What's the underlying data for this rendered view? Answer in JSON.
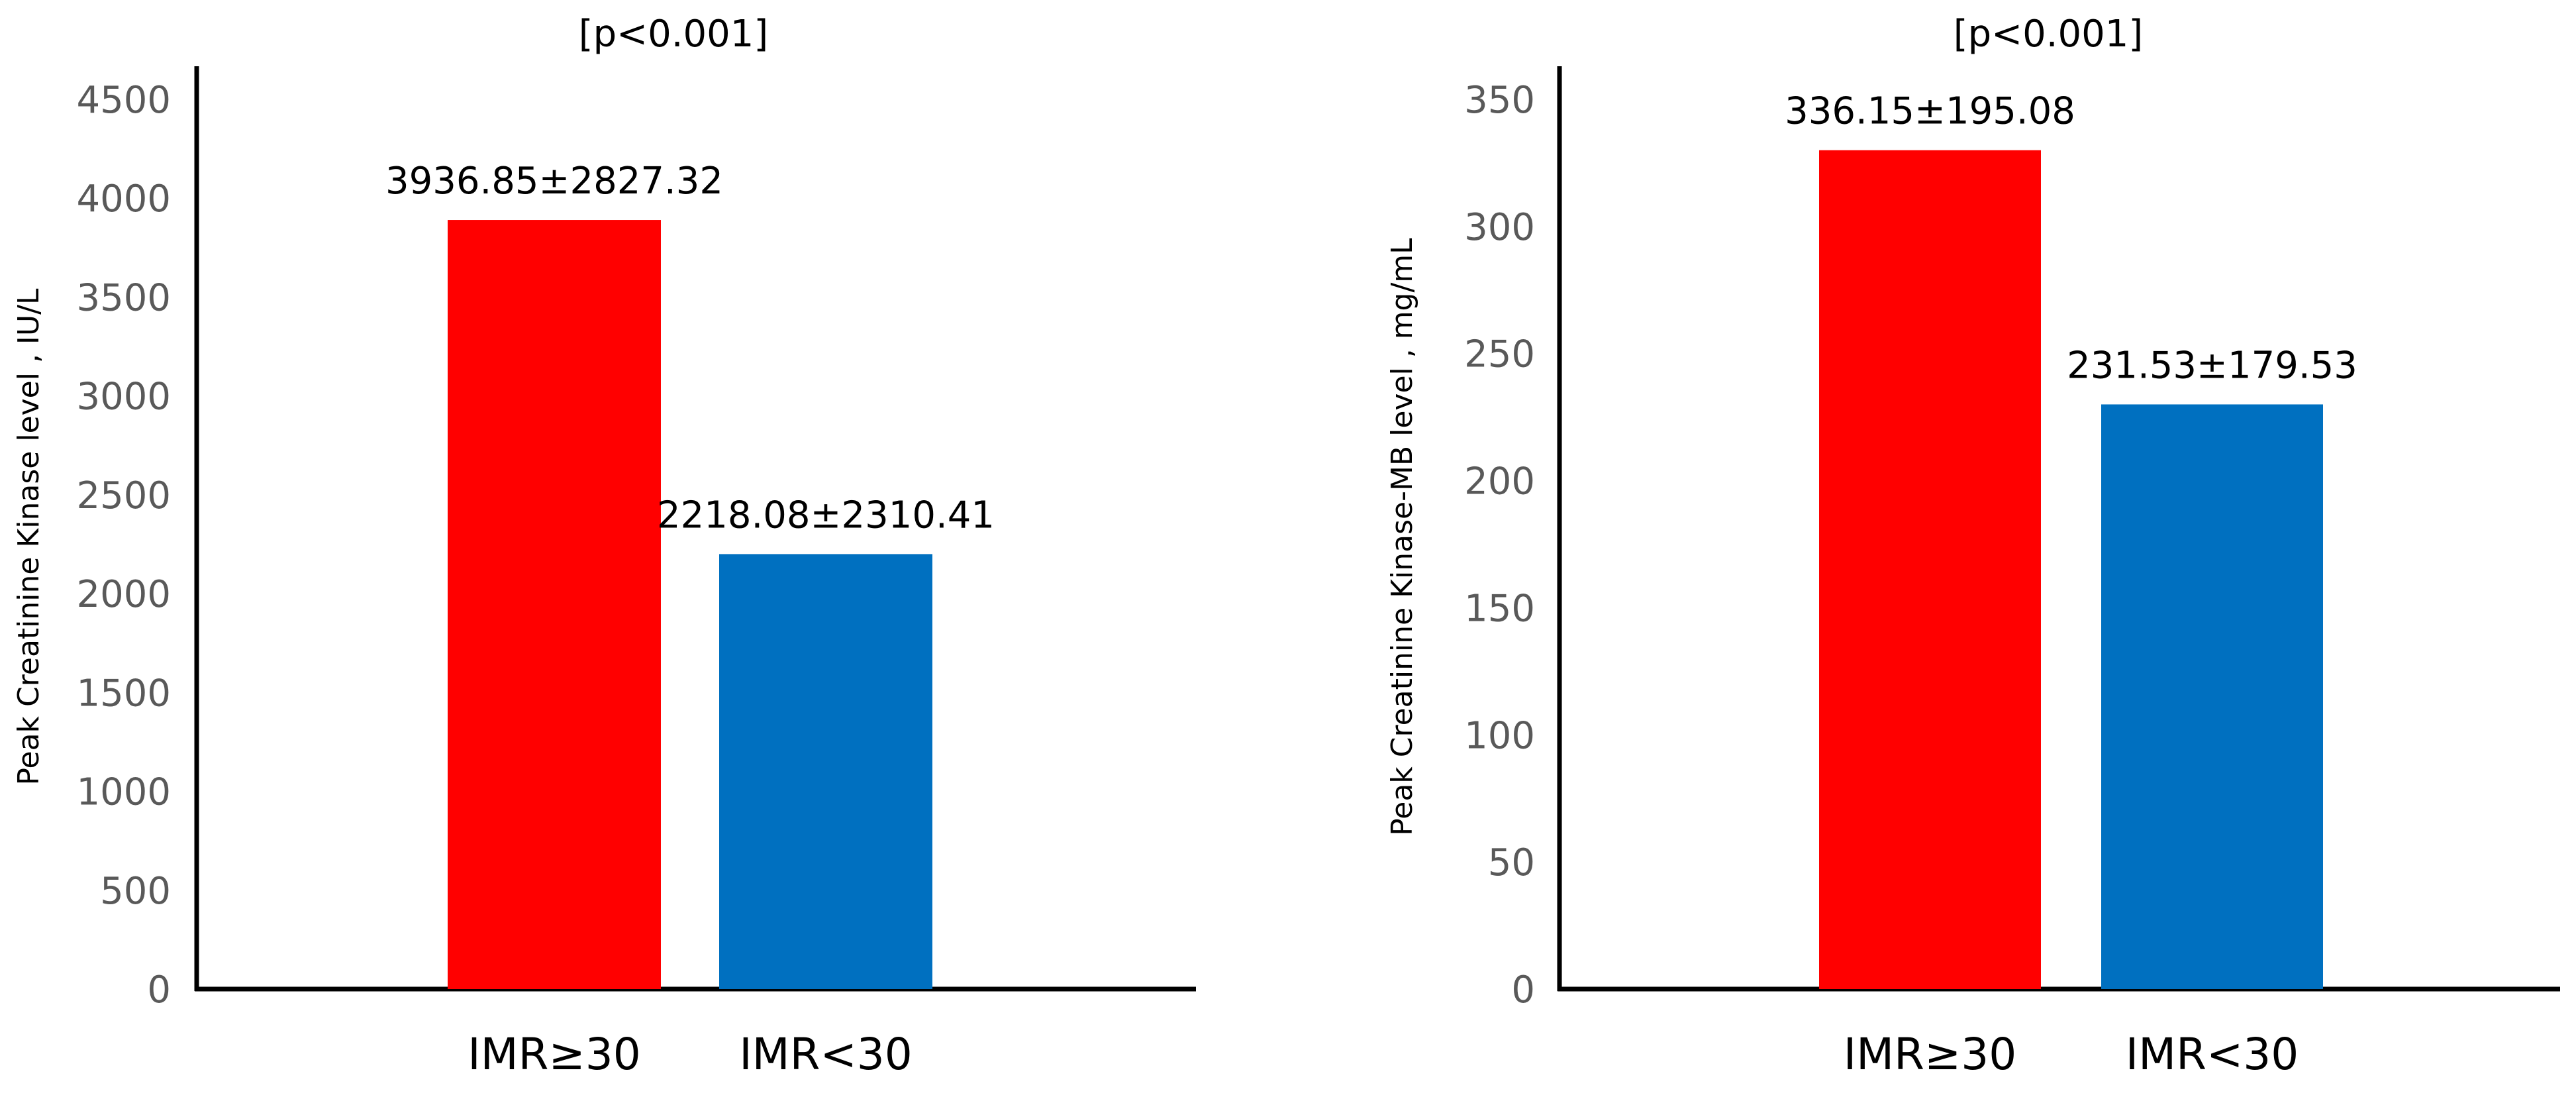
{
  "chart_data": [
    {
      "type": "bar",
      "annotation": "[p<0.001]",
      "ylabel": "Peak Creatinine Kinase level , IU/L",
      "categories": [
        "IMR≥30",
        "IMR<30"
      ],
      "values": [
        3890,
        2200
      ],
      "value_labels": [
        "3936.85±2827.32",
        "2218.08±2310.41"
      ],
      "colors": [
        "#ff0000",
        "#0070c0"
      ],
      "ylim": [
        0,
        4500
      ],
      "yticks": [
        0,
        500,
        1000,
        1500,
        2000,
        2500,
        3000,
        3500,
        4000,
        4500
      ],
      "grid": false,
      "legend": "none"
    },
    {
      "type": "bar",
      "annotation": "[p<0.001]",
      "ylabel": "Peak Creatinine Kinase-MB level , mg/mL",
      "categories": [
        "IMR≥30",
        "IMR<30"
      ],
      "values": [
        330,
        230
      ],
      "value_labels": [
        "336.15±195.08",
        "231.53±179.53"
      ],
      "colors": [
        "#ff0000",
        "#0070c0"
      ],
      "ylim": [
        0,
        350
      ],
      "yticks": [
        0,
        50,
        100,
        150,
        200,
        250,
        300,
        350
      ],
      "grid": false,
      "legend": "none"
    }
  ]
}
